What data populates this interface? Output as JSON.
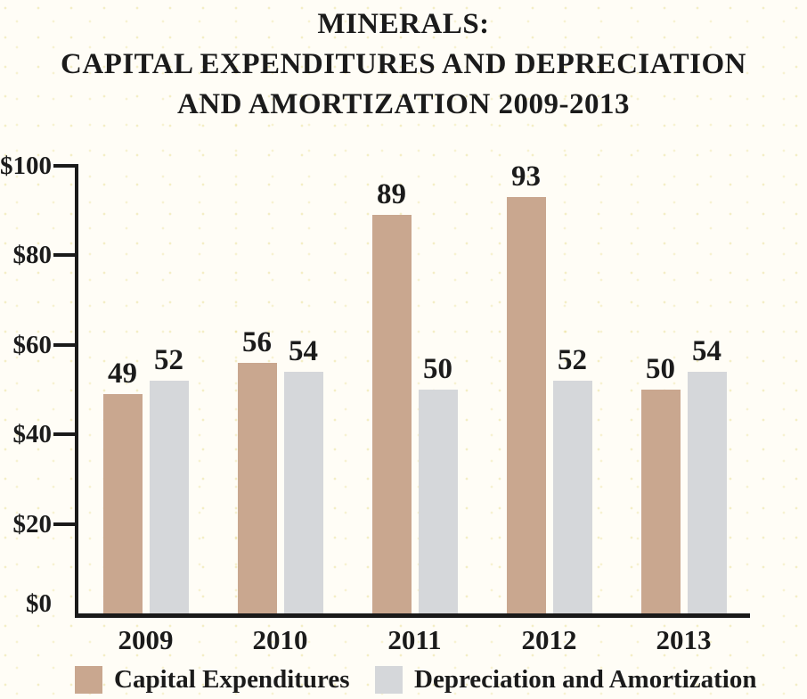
{
  "title": {
    "lines": [
      "MINERALS:",
      "CAPITAL EXPENDITURES AND DEPRECIATION",
      "AND AMORTIZATION 2009-2013"
    ]
  },
  "chart_data": {
    "type": "bar",
    "title": "MINERALS: CAPITAL EXPENDITURES AND DEPRECIATION AND AMORTIZATION 2009-2013",
    "categories": [
      "2009",
      "2010",
      "2011",
      "2012",
      "2013"
    ],
    "series": [
      {
        "name": "Capital Expenditures",
        "color": "#c9a78f",
        "values": [
          49,
          56,
          89,
          93,
          50
        ]
      },
      {
        "name": "Depreciation and Amortization",
        "color": "#d5d7da",
        "values": [
          52,
          54,
          50,
          52,
          54
        ]
      }
    ],
    "bar_value_labels": true,
    "xlabel": "",
    "ylabel": "",
    "ylim": [
      0,
      100
    ],
    "yticks": [
      {
        "value": 0,
        "label": "$0"
      },
      {
        "value": 20,
        "label": "$20"
      },
      {
        "value": 40,
        "label": "$40"
      },
      {
        "value": 60,
        "label": "$60"
      },
      {
        "value": 80,
        "label": "$80"
      },
      {
        "value": 100,
        "label": "$100"
      }
    ],
    "grid": false,
    "legend_position": "bottom"
  },
  "colors": {
    "axis": "#1a1a1a",
    "text": "#1b1b1b",
    "background": "#fffdf6"
  }
}
